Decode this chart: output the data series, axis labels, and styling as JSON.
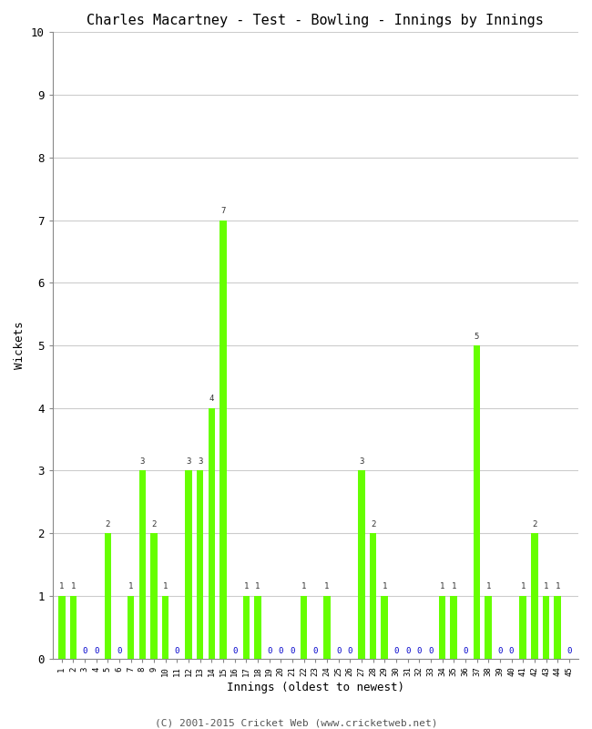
{
  "title": "Charles Macartney - Test - Bowling - Innings by Innings",
  "xlabel": "Innings (oldest to newest)",
  "ylabel": "Wickets",
  "ylim": [
    0,
    10
  ],
  "yticks": [
    0,
    1,
    2,
    3,
    4,
    5,
    6,
    7,
    8,
    9,
    10
  ],
  "bar_color": "#66FF00",
  "zero_color": "#0000CC",
  "label_color": "#333333",
  "background_color": "#ffffff",
  "grid_color": "#cccccc",
  "innings": [
    1,
    2,
    3,
    4,
    5,
    6,
    7,
    8,
    9,
    10,
    11,
    12,
    13,
    14,
    15,
    16,
    17,
    18,
    19,
    20,
    21,
    22,
    23,
    24,
    25,
    26,
    27,
    28,
    29,
    30,
    31,
    32,
    33,
    34,
    35,
    36,
    37,
    38,
    39,
    40,
    41,
    42,
    43,
    44,
    45
  ],
  "wickets": [
    1,
    1,
    0,
    0,
    2,
    0,
    1,
    3,
    2,
    1,
    0,
    3,
    3,
    4,
    7,
    0,
    1,
    1,
    0,
    0,
    0,
    1,
    0,
    1,
    0,
    0,
    3,
    2,
    1,
    0,
    0,
    0,
    0,
    1,
    1,
    0,
    5,
    1,
    0,
    0,
    1,
    2,
    1,
    1,
    0
  ],
  "figsize": [
    6.5,
    8.0
  ],
  "dpi": 100
}
